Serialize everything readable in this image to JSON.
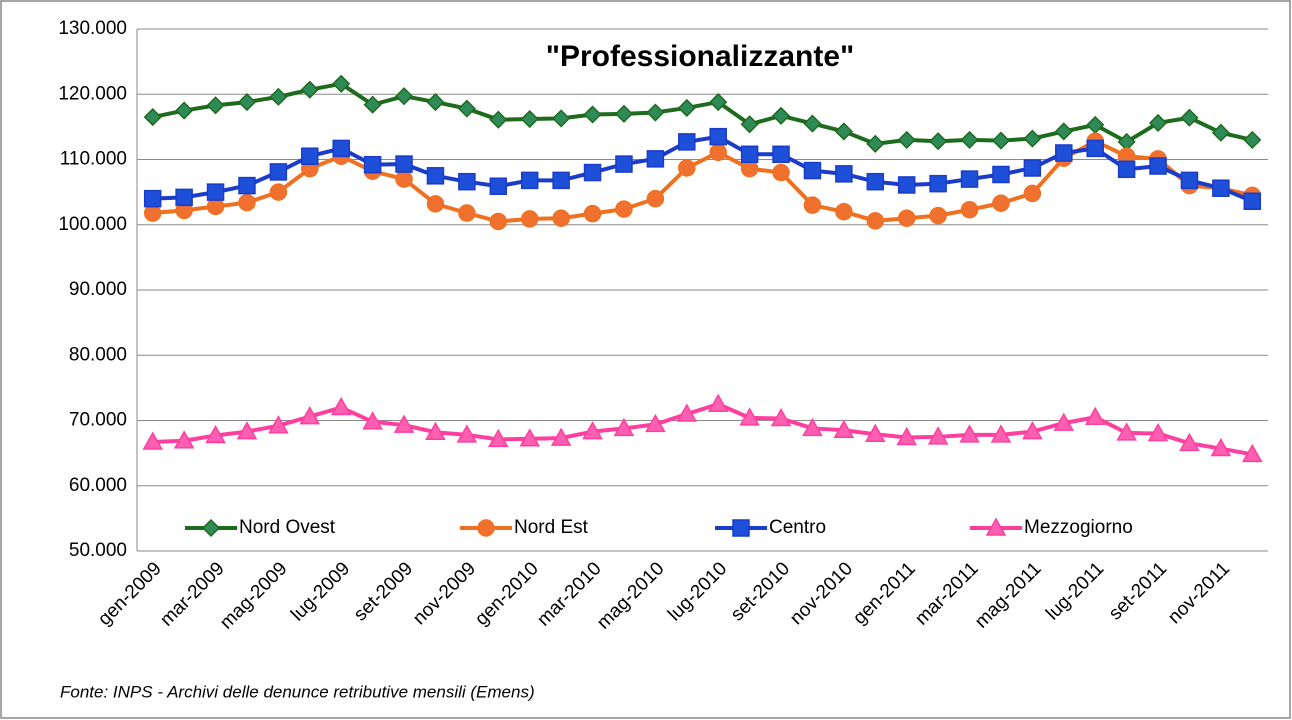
{
  "chart_data": {
    "type": "line",
    "title": "\"Professionalizzante\"",
    "source": "Fonte: INPS - Archivi delle denunce retributive mensili (Emens)",
    "categories": [
      "gen-2009",
      null,
      "mar-2009",
      null,
      "mag-2009",
      null,
      "lug-2009",
      null,
      "set-2009",
      null,
      "nov-2009",
      null,
      "gen-2010",
      null,
      "mar-2010",
      null,
      "mag-2010",
      null,
      "lug-2010",
      null,
      "set-2010",
      null,
      "nov-2010",
      null,
      "gen-2011",
      null,
      "mar-2011",
      null,
      "mag-2011",
      null,
      "lug-2011",
      null,
      "set-2011",
      null,
      "nov-2011",
      null
    ],
    "ylim": [
      50000,
      130000
    ],
    "yticks": [
      {
        "value": 50000,
        "label": "50.000"
      },
      {
        "value": 60000,
        "label": "60.000"
      },
      {
        "value": 70000,
        "label": "70.000"
      },
      {
        "value": 80000,
        "label": "80.000"
      },
      {
        "value": 90000,
        "label": "90.000"
      },
      {
        "value": 100000,
        "label": "100.000"
      },
      {
        "value": 110000,
        "label": "110.000"
      },
      {
        "value": 120000,
        "label": "120.000"
      },
      {
        "value": 130000,
        "label": "130.000"
      }
    ],
    "grid": true,
    "legend": "bottom",
    "series": [
      {
        "name": "Nord Ovest",
        "color": "#1e6b1e",
        "marker": "diamond",
        "marker_color": "#2e8b57",
        "values": [
          116500,
          117500,
          118300,
          118800,
          119600,
          120700,
          121600,
          118400,
          119700,
          118800,
          117800,
          116100,
          116200,
          116300,
          116900,
          117000,
          117200,
          117900,
          118800,
          115400,
          116700,
          115500,
          114300,
          112400,
          113000,
          112800,
          113000,
          112900,
          113200,
          114300,
          115300,
          112700,
          115600,
          116400,
          114100,
          113000
        ]
      },
      {
        "name": "Nord Est",
        "color": "#f07020",
        "marker": "circle",
        "marker_color": "#f07030",
        "values": [
          101800,
          102200,
          102800,
          103400,
          105000,
          108600,
          110500,
          108200,
          107000,
          103200,
          101800,
          100500,
          100900,
          101000,
          101700,
          102400,
          104000,
          108700,
          111100,
          108600,
          108000,
          103000,
          102000,
          100600,
          101000,
          101400,
          102300,
          103300,
          104800,
          110200,
          112800,
          110500,
          110100,
          106000,
          105600,
          104500
        ]
      },
      {
        "name": "Centro",
        "color": "#1a3cc8",
        "marker": "square",
        "marker_color": "#1d4fd8",
        "values": [
          104000,
          104200,
          105000,
          106000,
          108100,
          110500,
          111700,
          109200,
          109300,
          107500,
          106600,
          105900,
          106800,
          106800,
          108000,
          109300,
          110100,
          112700,
          113500,
          110800,
          110800,
          108300,
          107800,
          106600,
          106100,
          106300,
          107000,
          107700,
          108700,
          111000,
          111700,
          108500,
          109000,
          106800,
          105600,
          103600
        ]
      },
      {
        "name": "Mezzogiorno",
        "color": "#ff3fa0",
        "marker": "triangle",
        "marker_color": "#ff5fb0",
        "values": [
          66700,
          66900,
          67700,
          68300,
          69200,
          70600,
          72000,
          69800,
          69300,
          68200,
          67800,
          67100,
          67200,
          67300,
          68300,
          68800,
          69400,
          71000,
          72500,
          70400,
          70300,
          68800,
          68500,
          67900,
          67400,
          67500,
          67800,
          67800,
          68300,
          69600,
          70500,
          68100,
          68000,
          66500,
          65700,
          64800
        ]
      }
    ]
  }
}
